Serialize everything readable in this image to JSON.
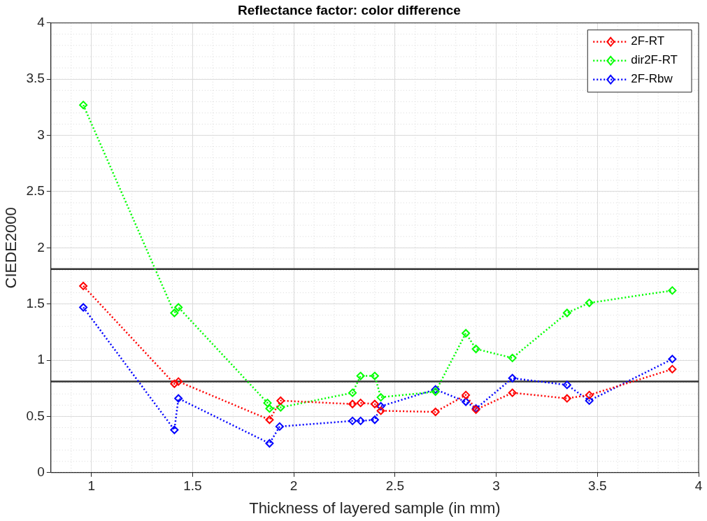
{
  "chart_data": {
    "type": "line",
    "title": "Reflectance factor: color difference",
    "xlabel": "Thickness of layered sample (in mm)",
    "ylabel": "CIEDE2000",
    "xlim": [
      0.8,
      4
    ],
    "xticks": [
      1,
      1.5,
      2,
      2.5,
      3,
      3.5,
      4
    ],
    "ylim": [
      0,
      4
    ],
    "yticks": [
      0,
      0.5,
      1,
      1.5,
      2,
      2.5,
      3,
      3.5,
      4
    ],
    "grid": true,
    "legend": "top right",
    "marker": "diamond",
    "line_style": "dotted",
    "series": [
      {
        "name": "2F-RT",
        "color": "#ff0000",
        "x": [
          0.96,
          1.41,
          1.43,
          1.88,
          1.935,
          2.29,
          2.33,
          2.4,
          2.43,
          2.7,
          2.85,
          2.9,
          3.08,
          3.35,
          3.46,
          3.87
        ],
        "values": [
          1.66,
          0.79,
          0.81,
          0.47,
          0.64,
          0.61,
          0.62,
          0.61,
          0.55,
          0.54,
          0.69,
          0.56,
          0.71,
          0.66,
          0.69,
          0.92
        ]
      },
      {
        "name": "dir2F-RT",
        "color": "#00ff00",
        "x": [
          0.96,
          1.41,
          1.43,
          1.87,
          1.88,
          1.935,
          2.29,
          2.33,
          2.4,
          2.43,
          2.7,
          2.85,
          2.9,
          3.08,
          3.35,
          3.46,
          3.87
        ],
        "values": [
          3.27,
          1.42,
          1.47,
          0.62,
          0.57,
          0.58,
          0.71,
          0.86,
          0.86,
          0.67,
          0.72,
          1.24,
          1.1,
          1.02,
          1.42,
          1.51,
          1.62
        ]
      },
      {
        "name": "2F-Rbw",
        "color": "#0000ff",
        "x": [
          0.96,
          1.41,
          1.43,
          1.88,
          1.93,
          2.29,
          2.33,
          2.4,
          2.43,
          2.7,
          2.85,
          2.9,
          3.08,
          3.35,
          3.46,
          3.87
        ],
        "values": [
          1.47,
          0.38,
          0.66,
          0.26,
          0.41,
          0.46,
          0.46,
          0.47,
          0.59,
          0.74,
          0.63,
          0.57,
          0.84,
          0.78,
          0.64,
          1.01
        ]
      }
    ],
    "ref_lines": [
      {
        "axis": "y",
        "value": 1.81,
        "color": "#333333"
      },
      {
        "axis": "y",
        "value": 0.81,
        "color": "#333333"
      }
    ]
  }
}
